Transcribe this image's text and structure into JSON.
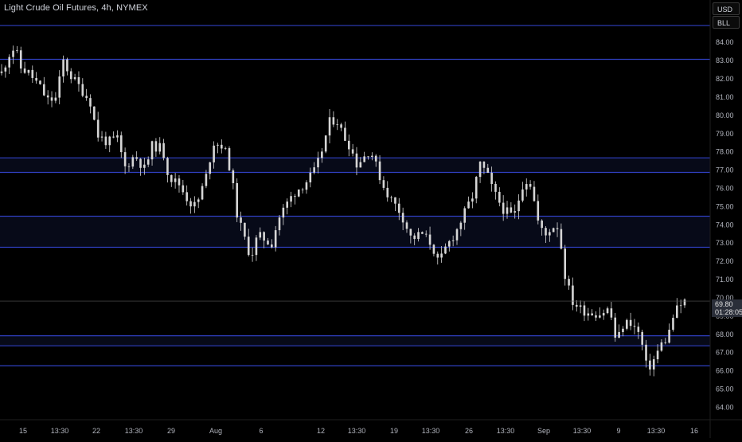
{
  "header": {
    "symbol_line": "Light Crude Oil Futures, 4h, NYMEX",
    "currency": "USD",
    "unit": "BLL"
  },
  "last_price": {
    "value": "69.80",
    "countdown": "01:28:05"
  },
  "colors": {
    "background": "#000000",
    "level_line": "#2f3fbf",
    "zone_fill": "#070a18",
    "candle": "#d6d6d6",
    "last_price_line": "#555555"
  },
  "chart_data": {
    "type": "candlestick",
    "title": "Light Crude Oil Futures, 4h, NYMEX",
    "ylim": [
      63.3,
      86.3
    ],
    "y_ticks": [
      64,
      65,
      66,
      67,
      68,
      69,
      70,
      71,
      72,
      73,
      74,
      75,
      76,
      77,
      78,
      79,
      80,
      81,
      82,
      83,
      84
    ],
    "y_tick_labels": [
      "64.00",
      "65.00",
      "66.00",
      "67.00",
      "68.00",
      "69.00",
      "70.00",
      "71.00",
      "72.00",
      "73.00",
      "74.00",
      "75.00",
      "76.00",
      "77.00",
      "78.00",
      "79.00",
      "80.00",
      "81.00",
      "82.00",
      "83.00",
      "84.00"
    ],
    "x_tick_labels": [
      "15",
      "13:30",
      "22",
      "13:30",
      "29",
      "Aug",
      "6",
      "12",
      "13:30",
      "19",
      "13:30",
      "26",
      "13:30",
      "Sep",
      "13:30",
      "9",
      "13:30",
      "16"
    ],
    "horizontal_levels": [
      84.9,
      83.05,
      77.65,
      76.85,
      74.45,
      72.75,
      67.9,
      67.35,
      66.25
    ],
    "zones": [
      [
        76.85,
        77.65
      ],
      [
        72.75,
        74.45
      ],
      [
        67.35,
        67.9
      ]
    ],
    "last_price": 69.8,
    "grid": false,
    "close_path": [
      [
        0,
        82.3
      ],
      [
        0.013,
        83.5
      ],
      [
        0.02,
        83.7
      ],
      [
        0.027,
        82.6
      ],
      [
        0.04,
        82.3
      ],
      [
        0.055,
        81.6
      ],
      [
        0.067,
        80.8
      ],
      [
        0.08,
        80.9
      ],
      [
        0.09,
        83.0
      ],
      [
        0.1,
        82.2
      ],
      [
        0.115,
        81.5
      ],
      [
        0.13,
        80.7
      ],
      [
        0.14,
        78.9
      ],
      [
        0.155,
        78.5
      ],
      [
        0.17,
        78.7
      ],
      [
        0.18,
        77.1
      ],
      [
        0.195,
        77.8
      ],
      [
        0.21,
        77.0
      ],
      [
        0.22,
        78.3
      ],
      [
        0.235,
        78.2
      ],
      [
        0.245,
        76.6
      ],
      [
        0.26,
        76.2
      ],
      [
        0.275,
        75.2
      ],
      [
        0.285,
        75.0
      ],
      [
        0.3,
        76.7
      ],
      [
        0.31,
        78.5
      ],
      [
        0.325,
        78.3
      ],
      [
        0.335,
        77.0
      ],
      [
        0.345,
        74.5
      ],
      [
        0.355,
        73.3
      ],
      [
        0.365,
        72.2
      ],
      [
        0.375,
        73.4
      ],
      [
        0.385,
        73.2
      ],
      [
        0.395,
        72.9
      ],
      [
        0.405,
        74.3
      ],
      [
        0.42,
        75.3
      ],
      [
        0.43,
        75.8
      ],
      [
        0.445,
        76.3
      ],
      [
        0.46,
        77.0
      ],
      [
        0.47,
        78.2
      ],
      [
        0.48,
        79.6
      ],
      [
        0.49,
        79.8
      ],
      [
        0.5,
        78.9
      ],
      [
        0.51,
        78.3
      ],
      [
        0.52,
        77.3
      ],
      [
        0.53,
        77.7
      ],
      [
        0.54,
        78.1
      ],
      [
        0.55,
        77.0
      ],
      [
        0.56,
        76.0
      ],
      [
        0.57,
        75.4
      ],
      [
        0.585,
        74.6
      ],
      [
        0.6,
        73.2
      ],
      [
        0.615,
        73.5
      ],
      [
        0.63,
        72.9
      ],
      [
        0.64,
        71.8
      ],
      [
        0.65,
        72.7
      ],
      [
        0.665,
        73.6
      ],
      [
        0.68,
        74.8
      ],
      [
        0.69,
        75.6
      ],
      [
        0.7,
        77.3
      ],
      [
        0.71,
        76.8
      ],
      [
        0.72,
        75.8
      ],
      [
        0.735,
        74.8
      ],
      [
        0.75,
        74.4
      ],
      [
        0.765,
        76.5
      ],
      [
        0.775,
        76.2
      ],
      [
        0.785,
        74.2
      ],
      [
        0.795,
        73.3
      ],
      [
        0.805,
        73.9
      ],
      [
        0.815,
        73.9
      ],
      [
        0.825,
        71.2
      ],
      [
        0.835,
        69.8
      ],
      [
        0.85,
        69.3
      ],
      [
        0.86,
        69.2
      ],
      [
        0.875,
        69.1
      ],
      [
        0.89,
        69.4
      ],
      [
        0.9,
        67.5
      ],
      [
        0.91,
        68.5
      ],
      [
        0.92,
        68.7
      ],
      [
        0.935,
        67.9
      ],
      [
        0.945,
        66.0
      ],
      [
        0.955,
        66.6
      ],
      [
        0.965,
        67.4
      ],
      [
        0.975,
        67.8
      ],
      [
        0.985,
        69.2
      ],
      [
        1.0,
        69.8
      ]
    ]
  }
}
